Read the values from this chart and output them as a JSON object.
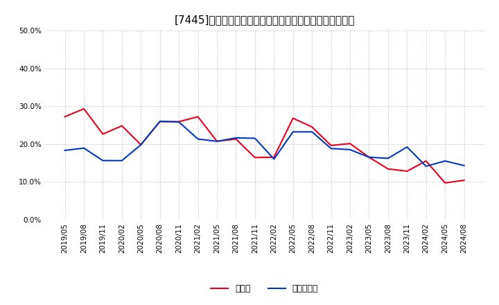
{
  "title": "[7445]　現頲金、有利子負債の総資産に対する比率の推移",
  "x_labels": [
    "2019/05",
    "2019/08",
    "2019/11",
    "2020/02",
    "2020/05",
    "2020/08",
    "2020/11",
    "2021/02",
    "2021/05",
    "2021/08",
    "2021/11",
    "2022/02",
    "2022/05",
    "2022/08",
    "2022/11",
    "2023/02",
    "2023/05",
    "2023/08",
    "2023/11",
    "2024/02",
    "2024/05",
    "2024/08"
  ],
  "cash": [
    0.272,
    0.293,
    0.226,
    0.248,
    0.198,
    0.259,
    0.259,
    0.272,
    0.207,
    0.213,
    0.164,
    0.165,
    0.268,
    0.245,
    0.196,
    0.201,
    0.165,
    0.134,
    0.128,
    0.155,
    0.097,
    0.104
  ],
  "debt": [
    0.183,
    0.189,
    0.156,
    0.156,
    0.198,
    0.26,
    0.258,
    0.213,
    0.207,
    0.216,
    0.215,
    0.16,
    0.232,
    0.232,
    0.188,
    0.185,
    0.165,
    0.162,
    0.192,
    0.141,
    0.155,
    0.143
  ],
  "cash_color": "#e8001c",
  "debt_color": "#0037c1",
  "background_color": "#ffffff",
  "grid_color": "#aaaaaa",
  "ylim": [
    0.0,
    0.5
  ],
  "yticks": [
    0.0,
    0.1,
    0.2,
    0.3,
    0.4,
    0.5
  ],
  "legend_cash": "現頲金",
  "legend_debt": "有利子負債",
  "title_fontsize": 11,
  "tick_fontsize": 7.5,
  "legend_fontsize": 9
}
